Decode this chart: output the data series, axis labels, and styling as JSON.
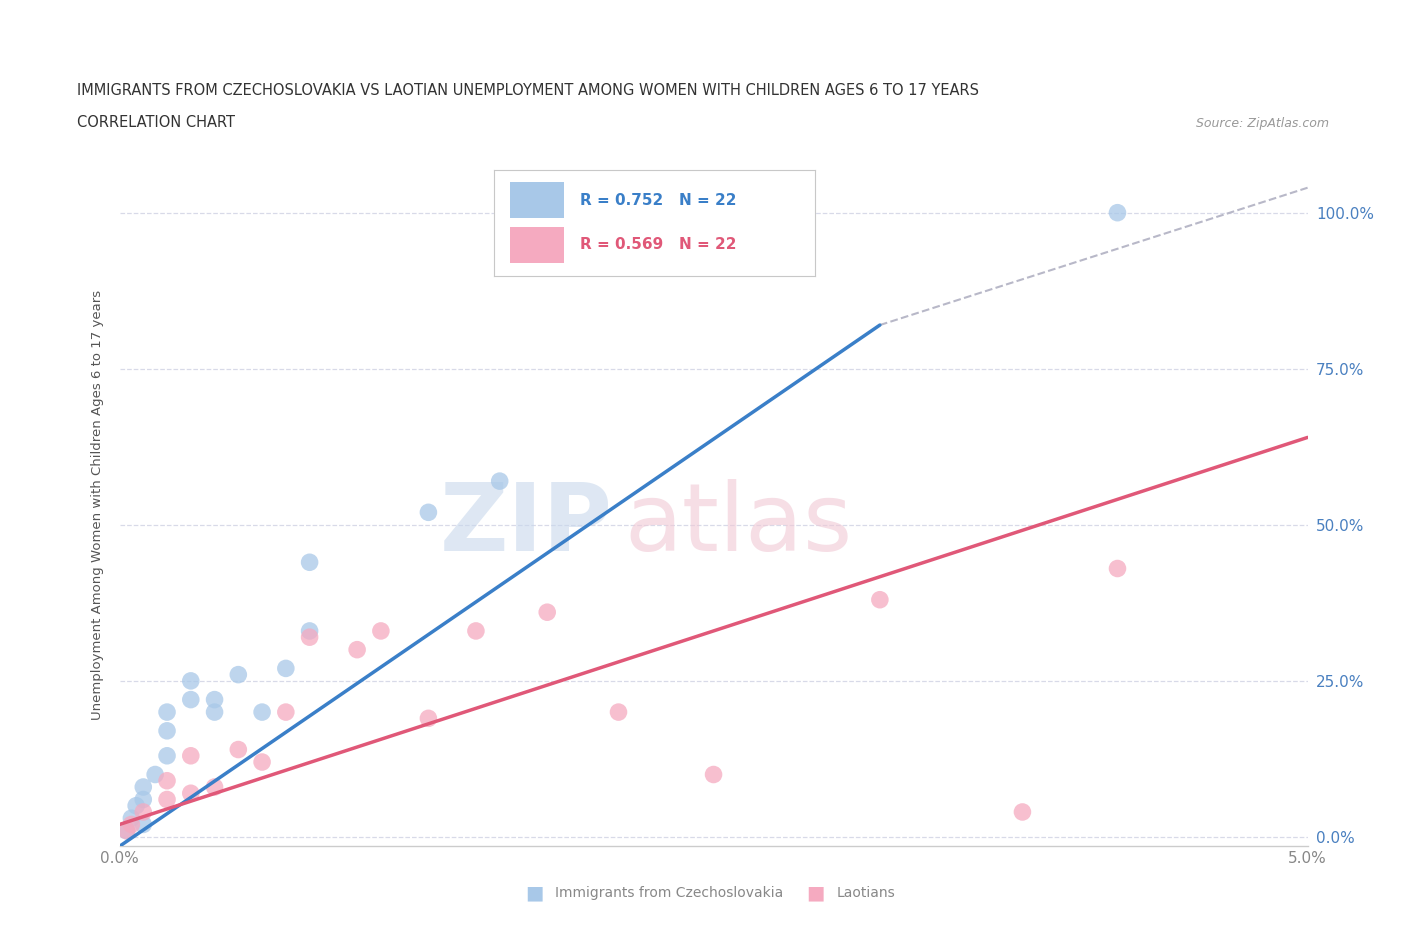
{
  "title_line1": "IMMIGRANTS FROM CZECHOSLOVAKIA VS LAOTIAN UNEMPLOYMENT AMONG WOMEN WITH CHILDREN AGES 6 TO 17 YEARS",
  "title_line2": "CORRELATION CHART",
  "source_text": "Source: ZipAtlas.com",
  "ylabel": "Unemployment Among Women with Children Ages 6 to 17 years",
  "xmin": 0.0,
  "xmax": 0.05,
  "ymin": -0.015,
  "ymax": 1.08,
  "xticks": [
    0.0,
    0.01,
    0.02,
    0.03,
    0.04,
    0.05
  ],
  "xtick_labels": [
    "0.0%",
    "",
    "",
    "",
    "",
    "5.0%"
  ],
  "yticks": [
    0.0,
    0.25,
    0.5,
    0.75,
    1.0
  ],
  "ytick_labels": [
    "0.0%",
    "25.0%",
    "50.0%",
    "75.0%",
    "100.0%"
  ],
  "legend_blue_r": "R = 0.752",
  "legend_blue_n": "N = 22",
  "legend_pink_r": "R = 0.569",
  "legend_pink_n": "N = 22",
  "blue_color": "#a8c8e8",
  "pink_color": "#f5aac0",
  "blue_line_color": "#3a7fc8",
  "pink_line_color": "#e05878",
  "dashed_line_color": "#b8b8c8",
  "grid_color": "#d8dae8",
  "blue_scatter_x": [
    0.0003,
    0.0005,
    0.0007,
    0.001,
    0.001,
    0.001,
    0.0015,
    0.002,
    0.002,
    0.002,
    0.003,
    0.003,
    0.004,
    0.004,
    0.005,
    0.006,
    0.007,
    0.008,
    0.008,
    0.013,
    0.016,
    0.042
  ],
  "blue_scatter_y": [
    0.01,
    0.03,
    0.05,
    0.06,
    0.08,
    0.02,
    0.1,
    0.13,
    0.17,
    0.2,
    0.22,
    0.25,
    0.2,
    0.22,
    0.26,
    0.2,
    0.27,
    0.33,
    0.44,
    0.52,
    0.57,
    1.0
  ],
  "pink_scatter_x": [
    0.0003,
    0.0005,
    0.001,
    0.002,
    0.002,
    0.003,
    0.003,
    0.004,
    0.005,
    0.006,
    0.007,
    0.008,
    0.01,
    0.011,
    0.013,
    0.015,
    0.018,
    0.021,
    0.025,
    0.032,
    0.038,
    0.042
  ],
  "pink_scatter_y": [
    0.01,
    0.02,
    0.04,
    0.06,
    0.09,
    0.07,
    0.13,
    0.08,
    0.14,
    0.12,
    0.2,
    0.32,
    0.3,
    0.33,
    0.19,
    0.33,
    0.36,
    0.2,
    0.1,
    0.38,
    0.04,
    0.43
  ],
  "blue_line_x": [
    0.0,
    0.032
  ],
  "blue_line_y": [
    -0.015,
    0.82
  ],
  "pink_line_x": [
    0.0,
    0.05
  ],
  "pink_line_y": [
    0.02,
    0.64
  ],
  "dashed_line_x": [
    0.032,
    0.05
  ],
  "dashed_line_y": [
    0.82,
    1.04
  ]
}
